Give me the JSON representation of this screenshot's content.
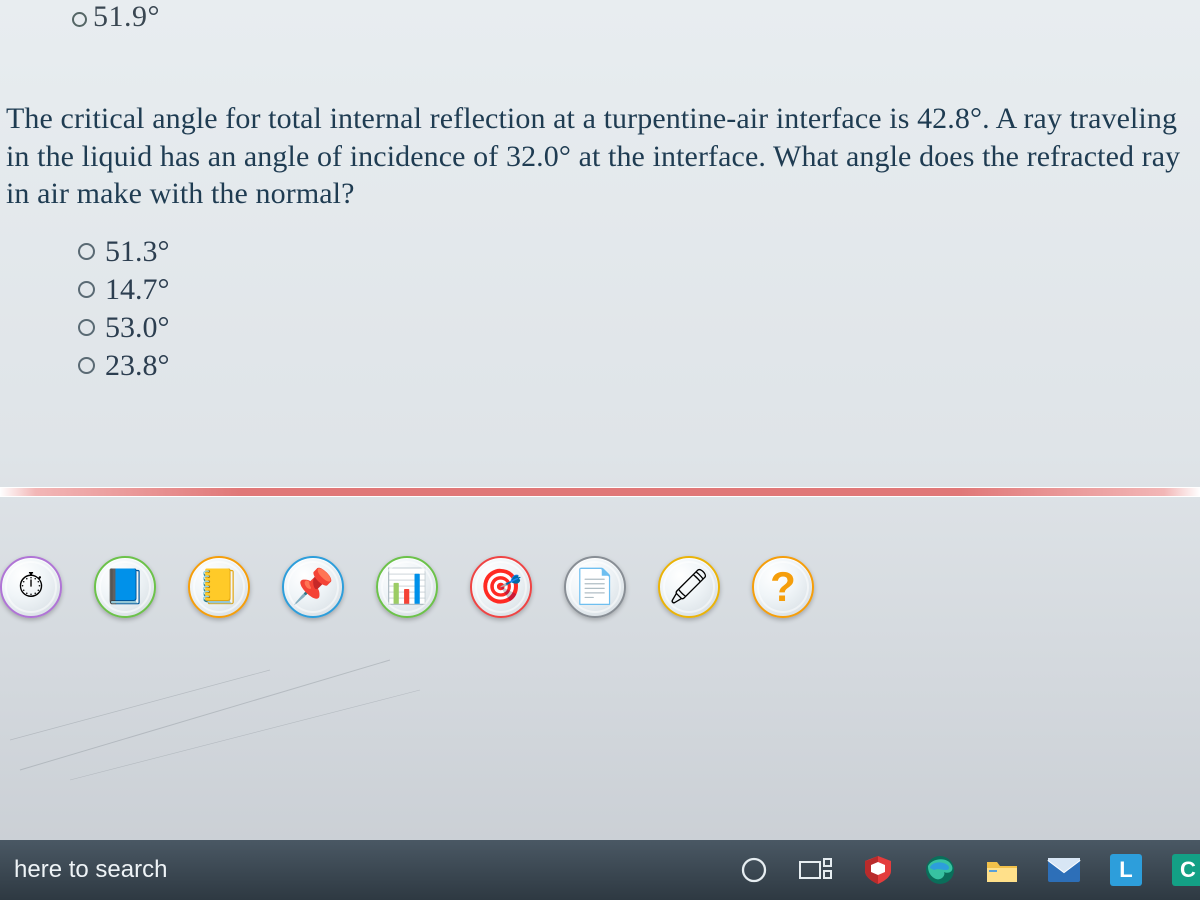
{
  "colors": {
    "background_gradient": [
      "#e8edf0",
      "#dfe4e8",
      "#c8cdd3"
    ],
    "question_text": "#1f3c52",
    "answer_text": "#2c3e50",
    "divider_gradient": [
      "#ffffff",
      "#f2b6b6",
      "#e07878"
    ],
    "taskbar_gradient": [
      "#4a5864",
      "#2e3942"
    ],
    "taskbar_text": "#eef3f6"
  },
  "prev_fragment": "51.9°",
  "question": "The critical angle for total internal reflection at a turpentine-air interface is 42.8°. A ray traveling in the liquid has an angle of incidence of 32.0° at the interface. What angle does the refracted ray in air make with the normal?",
  "answers": [
    {
      "label": "51.3°"
    },
    {
      "label": "14.7°"
    },
    {
      "label": "53.0°"
    },
    {
      "label": "23.8°"
    }
  ],
  "tools": [
    {
      "name": "timer-icon",
      "glyph": "⏱",
      "ring": "ti-purple"
    },
    {
      "name": "formula-icon",
      "glyph": "📘",
      "ring": "ti-green"
    },
    {
      "name": "calc-icon",
      "glyph": "📒",
      "ring": "ti-orange"
    },
    {
      "name": "pin-icon",
      "glyph": "📌",
      "ring": "ti-blue"
    },
    {
      "name": "chart-icon",
      "glyph": "📊",
      "ring": "ti-green"
    },
    {
      "name": "target-icon",
      "glyph": "🎯",
      "ring": "ti-red"
    },
    {
      "name": "note-icon",
      "glyph": "📄",
      "ring": "ti-gray"
    },
    {
      "name": "eraser-icon",
      "glyph": "🖍",
      "ring": "ti-yellow"
    },
    {
      "name": "help-icon",
      "glyph": "?",
      "ring": "ti-orange"
    }
  ],
  "taskbar": {
    "search_text": "here to search",
    "items": [
      {
        "name": "cortana-icon",
        "glyph_svg": "circle"
      },
      {
        "name": "taskview-icon",
        "glyph_svg": "taskview"
      },
      {
        "name": "mcafee-icon",
        "glyph_svg": "shield",
        "color": "#e43c3c"
      },
      {
        "name": "edge-icon",
        "glyph_svg": "edge"
      },
      {
        "name": "explorer-icon",
        "glyph_svg": "folder",
        "color": "#f2c14a"
      },
      {
        "name": "mail-icon",
        "glyph_svg": "mail",
        "color": "#2d6fb8"
      },
      {
        "name": "app-l-icon",
        "glyph_svg": "L",
        "color": "#2d9edb"
      },
      {
        "name": "app-c-icon",
        "glyph_svg": "C",
        "color": "#13a085"
      }
    ]
  }
}
